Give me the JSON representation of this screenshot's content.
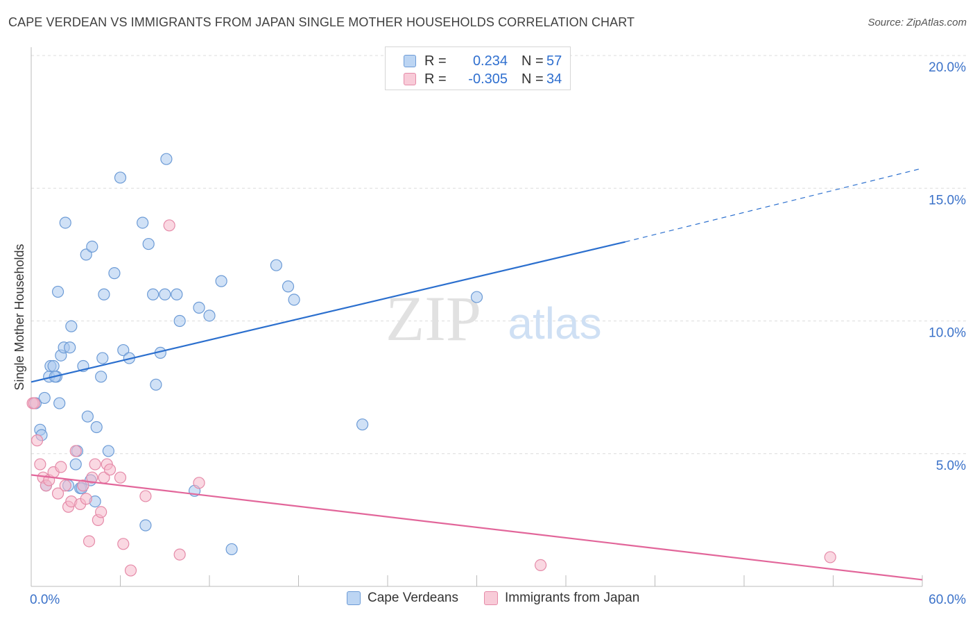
{
  "title": "CAPE VERDEAN VS IMMIGRANTS FROM JAPAN SINGLE MOTHER HOUSEHOLDS CORRELATION CHART",
  "source": "Source: ZipAtlas.com",
  "watermark": {
    "zip": "ZIP",
    "atlas": "atlas"
  },
  "legend_top": [
    {
      "r_label": "R =",
      "r_value": "0.234",
      "n_label": "N =",
      "n_value": "57"
    },
    {
      "r_label": "R =",
      "r_value": "-0.305",
      "n_label": "N =",
      "n_value": "34"
    }
  ],
  "legend_bottom": [
    "Cape Verdeans",
    "Immigrants from Japan"
  ],
  "colors": {
    "blue_fill": "#a9c8ee",
    "blue_stroke": "#6c9bd6",
    "blue_line": "#2b6fce",
    "pink_fill": "#f5b8cb",
    "pink_stroke": "#e58aa8",
    "pink_line": "#e2669a",
    "axis_text": "#3b72c9",
    "grid": "#dcdcdc"
  },
  "chart_data": {
    "type": "scatter",
    "ylabel": "Single Mother Households",
    "xlabel": "",
    "xlim": [
      0,
      60
    ],
    "ylim": [
      0,
      20
    ],
    "x_tick_labels": [
      "0.0%",
      "60.0%"
    ],
    "y_tick_labels": [
      "5.0%",
      "10.0%",
      "15.0%",
      "20.0%"
    ],
    "y_ticks": [
      5,
      10,
      15,
      20
    ],
    "grid": "horizontal dashed",
    "series": [
      {
        "name": "Cape Verdeans",
        "color": "#a9c8ee",
        "points": [
          [
            0.3,
            6.9
          ],
          [
            0.6,
            5.9
          ],
          [
            0.7,
            5.7
          ],
          [
            0.9,
            7.1
          ],
          [
            1.0,
            3.8
          ],
          [
            1.2,
            7.9
          ],
          [
            1.3,
            8.3
          ],
          [
            1.5,
            8.3
          ],
          [
            1.7,
            7.9
          ],
          [
            1.8,
            11.1
          ],
          [
            1.9,
            6.9
          ],
          [
            2.0,
            8.7
          ],
          [
            2.2,
            9.0
          ],
          [
            2.3,
            13.7
          ],
          [
            2.5,
            3.8
          ],
          [
            2.6,
            9.0
          ],
          [
            2.7,
            9.8
          ],
          [
            3.0,
            4.6
          ],
          [
            3.1,
            5.1
          ],
          [
            3.3,
            3.7
          ],
          [
            3.5,
            8.3
          ],
          [
            3.7,
            12.5
          ],
          [
            3.8,
            6.4
          ],
          [
            4.0,
            4.0
          ],
          [
            4.1,
            12.8
          ],
          [
            4.3,
            3.2
          ],
          [
            4.4,
            6.0
          ],
          [
            4.7,
            7.9
          ],
          [
            4.8,
            8.6
          ],
          [
            4.9,
            11.0
          ],
          [
            5.2,
            5.1
          ],
          [
            5.6,
            11.8
          ],
          [
            6.0,
            15.4
          ],
          [
            6.2,
            8.9
          ],
          [
            6.6,
            8.6
          ],
          [
            7.5,
            13.7
          ],
          [
            7.7,
            2.3
          ],
          [
            7.9,
            12.9
          ],
          [
            8.2,
            11.0
          ],
          [
            8.4,
            7.6
          ],
          [
            8.7,
            8.8
          ],
          [
            9.0,
            11.0
          ],
          [
            9.1,
            16.1
          ],
          [
            9.8,
            11.0
          ],
          [
            10.0,
            10.0
          ],
          [
            11.0,
            3.6
          ],
          [
            11.3,
            10.5
          ],
          [
            12.0,
            10.2
          ],
          [
            12.8,
            11.5
          ],
          [
            13.5,
            1.4
          ],
          [
            16.5,
            12.1
          ],
          [
            17.3,
            11.3
          ],
          [
            17.7,
            10.8
          ],
          [
            22.3,
            6.1
          ],
          [
            30.0,
            10.9
          ],
          [
            3.4,
            3.7
          ],
          [
            1.6,
            7.9
          ]
        ]
      },
      {
        "name": "Immigrants from Japan",
        "color": "#f5b8cb",
        "points": [
          [
            0.1,
            6.9
          ],
          [
            0.2,
            6.9
          ],
          [
            0.4,
            5.5
          ],
          [
            0.6,
            4.6
          ],
          [
            0.8,
            4.1
          ],
          [
            1.0,
            3.8
          ],
          [
            1.2,
            4.0
          ],
          [
            1.5,
            4.3
          ],
          [
            1.8,
            3.5
          ],
          [
            2.0,
            4.5
          ],
          [
            2.3,
            3.8
          ],
          [
            2.5,
            3.0
          ],
          [
            2.7,
            3.2
          ],
          [
            3.0,
            5.1
          ],
          [
            3.3,
            3.1
          ],
          [
            3.5,
            3.8
          ],
          [
            3.7,
            3.3
          ],
          [
            3.9,
            1.7
          ],
          [
            4.1,
            4.1
          ],
          [
            4.3,
            4.6
          ],
          [
            4.5,
            2.5
          ],
          [
            4.7,
            2.8
          ],
          [
            4.9,
            4.1
          ],
          [
            5.1,
            4.6
          ],
          [
            5.3,
            4.4
          ],
          [
            6.0,
            4.1
          ],
          [
            6.2,
            1.6
          ],
          [
            6.7,
            0.6
          ],
          [
            7.7,
            3.4
          ],
          [
            9.3,
            13.6
          ],
          [
            10.0,
            1.2
          ],
          [
            11.3,
            3.9
          ],
          [
            34.3,
            0.8
          ],
          [
            53.8,
            1.1
          ]
        ]
      }
    ],
    "trend_lines": [
      {
        "series": "Cape Verdeans",
        "x0": 0,
        "y0": 7.7,
        "x1": 40,
        "y1": 12.98,
        "dashed_to_x": 60,
        "dashed_to_y": 15.75
      },
      {
        "series": "Immigrants from Japan",
        "x0": 0,
        "y0": 4.2,
        "x1": 60,
        "y1": 0.25
      }
    ]
  }
}
